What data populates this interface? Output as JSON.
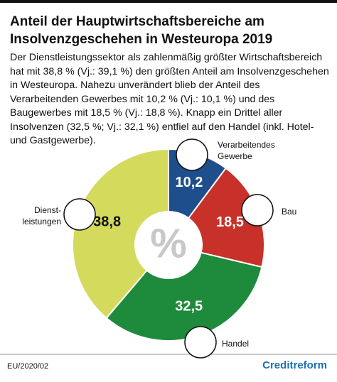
{
  "chart_data": {
    "type": "pie",
    "title": "Anteil der Hauptwirtschaftsbereiche am Insolvenzgeschehen in Westeuropa 2019",
    "subtitle": "Der Dienstleistungssektor als zahlenmäßig größter Wirtschaftsbereich hat mit 38,8 % (Vj.: 39,1 %) den größten Anteil am Insolvenzgeschehen in Westeuropa. Nahezu unverändert blieb der Anteil des Verarbeitenden Gewerbes mit 10,2 % (Vj.: 10,1 %) und des Baugewerbes mit 18,5 % (Vj.: 18,8 %). Knapp ein Drittel aller Insolvenzen (32,5 %; Vj.: 32,1 %) entfiel auf den Handel (inkl. Hotel- und Gastgewerbe).",
    "categories": [
      "Verarbeitendes\nGewerbe",
      "Bau",
      "Handel",
      "Dienst-\nleistungen"
    ],
    "values": [
      10.2,
      18.5,
      32.5,
      38.8
    ],
    "value_labels": [
      "10,2",
      "18,5",
      "32,5",
      "38,8"
    ],
    "colors": [
      "#1f4e8c",
      "#c8302a",
      "#1e8a3c",
      "#d3da5c"
    ],
    "center_label": "%",
    "source": "EU/2020/02",
    "brand": "Creditreform"
  }
}
